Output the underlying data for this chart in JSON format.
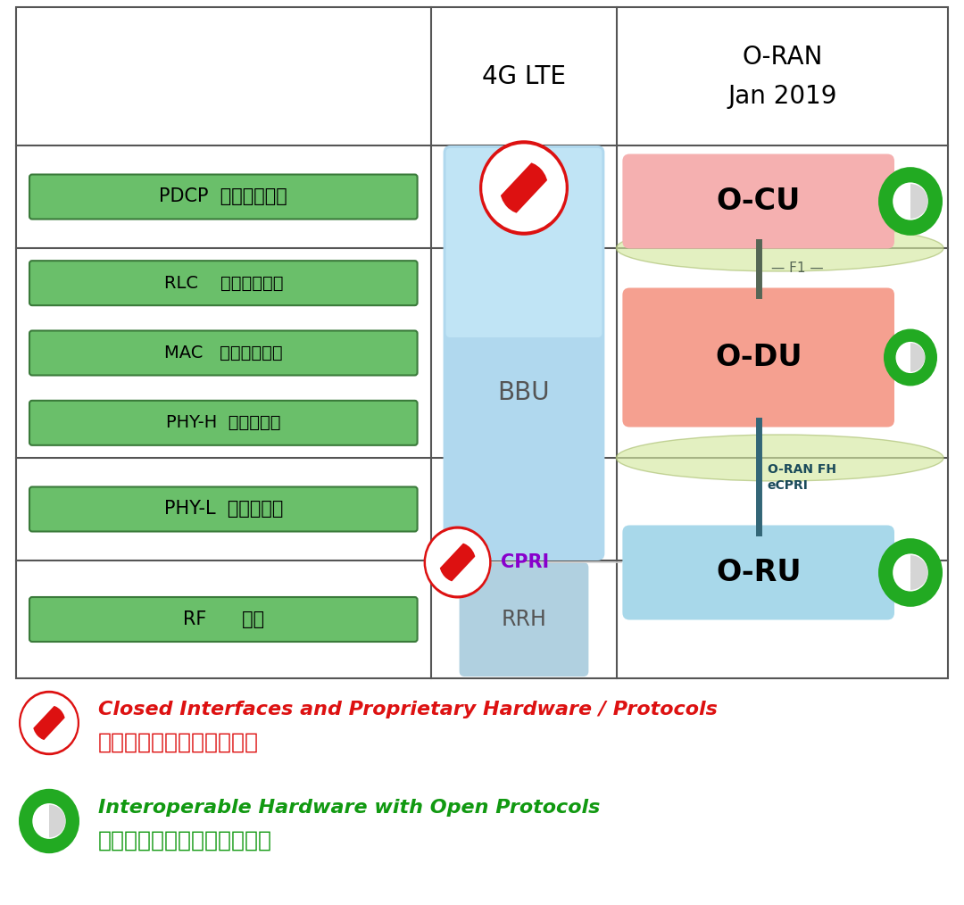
{
  "bg_color": "#ffffff",
  "table_border_color": "#555555",
  "green_box_fill": "#6abf6a",
  "green_box_edge": "#3a7a3a",
  "bbu_fill": "#a8d8ea",
  "rrh_fill": "#b8dce8",
  "ocu_fill_top": "#f8c0c0",
  "ocu_fill_bot": "#f0a0a0",
  "odu_fill_top": "#f8b0a0",
  "odu_fill_bot": "#f09090",
  "oru_fill": "#a8d8ea",
  "green_circle_color": "#22aa22",
  "red_symbol_color": "#dd1111",
  "cpri_color": "#8800cc",
  "f1_line_color": "#556655",
  "fh_line_color": "#336677",
  "ellipse_fill": "#d4e8a0",
  "ellipse_edge": "#aabf70",
  "legend_red": "#dd1111",
  "legend_green": "#119911",
  "col_labels": [
    "",
    "4G LTE",
    "O-RAN\nJan 2019"
  ],
  "pdcp_label": "PDCP  分组数据汇聚",
  "rlc_label": "RLC    无线链路控制",
  "mac_label": "MAC   媒体接入控制",
  "phyh_label": "PHY-H  物理层上层",
  "phyl_label": "PHY-L  物理层下层",
  "rf_label": "RF      射频",
  "legend1_en": "Closed Interfaces and Proprietary Hardware / Protocols",
  "legend1_cn": "封闭接口和专有硬件及协议",
  "legend2_en": "Interoperable Hardware with Open Protocols",
  "legend2_cn": "使用开放协议的可互操作硬件"
}
